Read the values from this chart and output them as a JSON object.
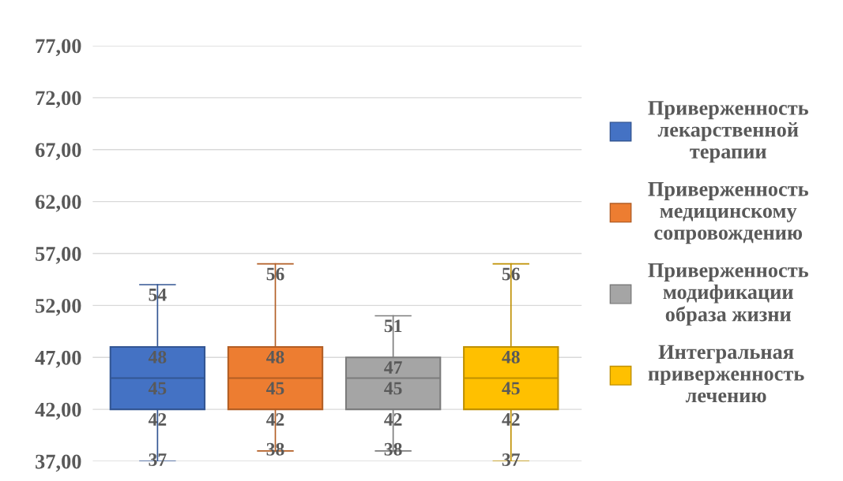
{
  "chart_data": {
    "type": "box",
    "categories": [
      null
    ],
    "series": [
      {
        "name": "Приверженность\nлекарственной\nтерапии",
        "color": "#4472c4",
        "boxes": [
          {
            "low": 37,
            "q1": 42,
            "median": 45,
            "q3": 48,
            "high": 54
          }
        ],
        "value_labels": [
          [
            "54",
            "48",
            "45",
            "42",
            "37"
          ]
        ]
      },
      {
        "name": "Приверженность\nмедицинскому\nсопровождению",
        "color": "#ed7d31",
        "boxes": [
          {
            "low": 38,
            "q1": 42,
            "median": 45,
            "q3": 48,
            "high": 56
          }
        ],
        "value_labels": [
          [
            "56",
            "48",
            "45",
            "42",
            "38"
          ]
        ]
      },
      {
        "name": "Приверженность\nмодификации\nобраза жизни",
        "color": "#a5a5a5",
        "boxes": [
          {
            "low": 38,
            "q1": 42,
            "median": 45,
            "q3": 47,
            "high": 51
          }
        ],
        "value_labels": [
          [
            "51",
            "47",
            "45",
            "42",
            "38"
          ]
        ]
      },
      {
        "name": "Интегральная\nприверженность\nлечению",
        "color": "#ffc000",
        "boxes": [
          {
            "low": 37,
            "q1": 42,
            "median": 45,
            "q3": 48,
            "high": 56
          }
        ],
        "value_labels": [
          [
            "56",
            "48",
            "45",
            "42",
            "37"
          ]
        ]
      }
    ],
    "ylim": [
      37,
      77
    ],
    "yticks": [
      {
        "value": 37,
        "label": "37,00"
      },
      {
        "value": 42,
        "label": "42,00"
      },
      {
        "value": 47,
        "label": "47,00"
      },
      {
        "value": 52,
        "label": "52,00"
      },
      {
        "value": 57,
        "label": "57,00"
      },
      {
        "value": 62,
        "label": "62,00"
      },
      {
        "value": 67,
        "label": "67,00"
      },
      {
        "value": 72,
        "label": "72,00"
      },
      {
        "value": 77,
        "label": "77,00"
      }
    ],
    "grid": "y",
    "legend": "right",
    "data_labels": true
  }
}
